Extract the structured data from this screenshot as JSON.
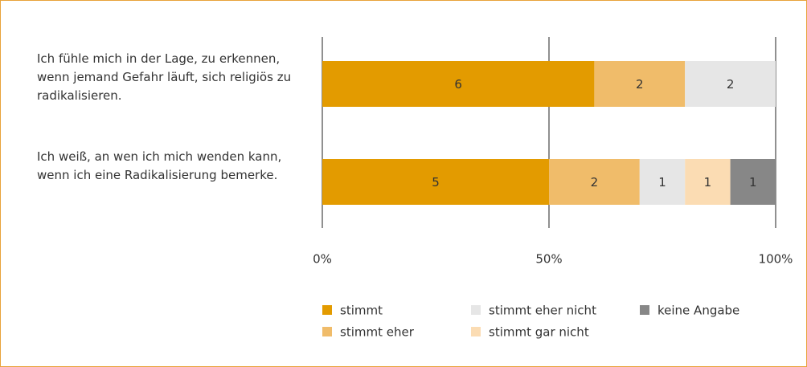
{
  "chart_data": {
    "type": "bar",
    "orientation": "horizontal",
    "stacked": "percent",
    "categories": [
      "Ich fühle mich in der Lage, zu erkennen, wenn jemand Gefahr läuft, sich religiös zu radikalisieren.",
      "Ich weiß, an wen ich mich wenden kann, wenn ich eine Radikalisierung bemerke."
    ],
    "series": [
      {
        "name": "stimmt",
        "color": "#e39b00",
        "values": [
          6,
          5
        ]
      },
      {
        "name": "stimmt eher",
        "color": "#f0bc6a",
        "values": [
          2,
          2
        ]
      },
      {
        "name": "stimmt eher nicht",
        "color": "#e6e6e6",
        "values": [
          2,
          1
        ]
      },
      {
        "name": "stimmt gar nicht",
        "color": "#fbdcb3",
        "values": [
          0,
          1
        ]
      },
      {
        "name": "keine Angabe",
        "color": "#878787",
        "values": [
          0,
          1
        ]
      }
    ],
    "xlim": [
      0,
      100
    ],
    "xticks": [
      {
        "value": 0,
        "label": "0%"
      },
      {
        "value": 50,
        "label": "50%"
      },
      {
        "value": 100,
        "label": "100%"
      }
    ],
    "grid": true,
    "legend": "bottom"
  }
}
